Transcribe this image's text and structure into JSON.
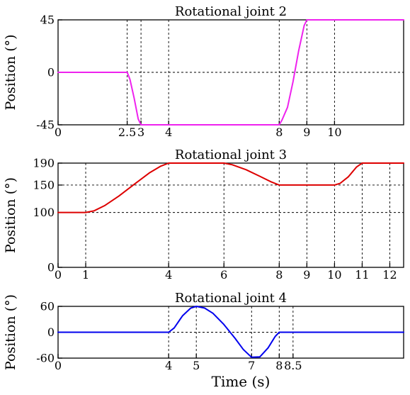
{
  "chart_data": [
    {
      "type": "line",
      "title": "Rotational joint 2",
      "ylabel": "Position (°)",
      "xlabel": "",
      "xlim": [
        0,
        12.5
      ],
      "ylim": [
        -45,
        45
      ],
      "yticks": [
        -45,
        0,
        45
      ],
      "ytick_labels": [
        "-45",
        "0",
        "45"
      ],
      "xticks": [
        0,
        2.5,
        3,
        4,
        8,
        9,
        10
      ],
      "xtick_labels": [
        "0",
        "2.5",
        "3",
        "4",
        "8",
        "9",
        "10"
      ],
      "grid": true,
      "series": [
        {
          "color": "#ee22ee",
          "x": [
            0,
            2.5,
            2.6,
            2.75,
            2.9,
            3,
            8,
            8.1,
            8.3,
            8.5,
            8.7,
            8.9,
            9,
            12.5
          ],
          "y": [
            0,
            0,
            -6,
            -22,
            -40,
            -45,
            -45,
            -41,
            -30,
            -8,
            18,
            40,
            45,
            45
          ]
        }
      ]
    },
    {
      "type": "line",
      "title": "Rotational joint 3",
      "ylabel": "Position (°)",
      "xlabel": "",
      "xlim": [
        0,
        12.5
      ],
      "ylim": [
        0,
        190
      ],
      "yticks": [
        0,
        100,
        150,
        190
      ],
      "ytick_labels": [
        "0",
        "100",
        "150",
        "190"
      ],
      "xticks": [
        0,
        1,
        4,
        6,
        8,
        9,
        10,
        11,
        12
      ],
      "xtick_labels": [
        "0",
        "1",
        "4",
        "6",
        "8",
        "9",
        "10",
        "11",
        "12"
      ],
      "grid": true,
      "series": [
        {
          "color": "#dd0000",
          "x": [
            0,
            1,
            1.3,
            1.7,
            2.2,
            2.8,
            3.3,
            3.7,
            4,
            6,
            6.3,
            6.8,
            7.3,
            7.7,
            8,
            10,
            10.2,
            10.5,
            10.8,
            11,
            12.5
          ],
          "y": [
            100,
            100,
            103,
            113,
            130,
            153,
            172,
            184,
            190,
            190,
            187,
            178,
            166,
            156,
            150,
            150,
            153,
            165,
            183,
            190,
            190
          ]
        }
      ]
    },
    {
      "type": "line",
      "title": "Rotational joint 4",
      "ylabel": "Position (°)",
      "xlabel": "Time (s)",
      "xlim": [
        0,
        12.5
      ],
      "ylim": [
        -60,
        60
      ],
      "yticks": [
        -60,
        0,
        60
      ],
      "ytick_labels": [
        "-60",
        "0",
        "60"
      ],
      "xticks": [
        0,
        4,
        5,
        7,
        8,
        8.5
      ],
      "xtick_labels": [
        "0",
        "4",
        "5",
        "7",
        "8",
        "8.5"
      ],
      "grid": true,
      "series": [
        {
          "color": "#0000ee",
          "x": [
            0,
            4,
            4.2,
            4.5,
            4.8,
            5,
            5.3,
            5.6,
            6,
            6.4,
            6.7,
            7,
            7.3,
            7.6,
            7.85,
            8,
            12.5
          ],
          "y": [
            0,
            0,
            10,
            38,
            56,
            60,
            56,
            44,
            18,
            -14,
            -40,
            -58,
            -57,
            -36,
            -10,
            0,
            0
          ]
        }
      ]
    }
  ]
}
